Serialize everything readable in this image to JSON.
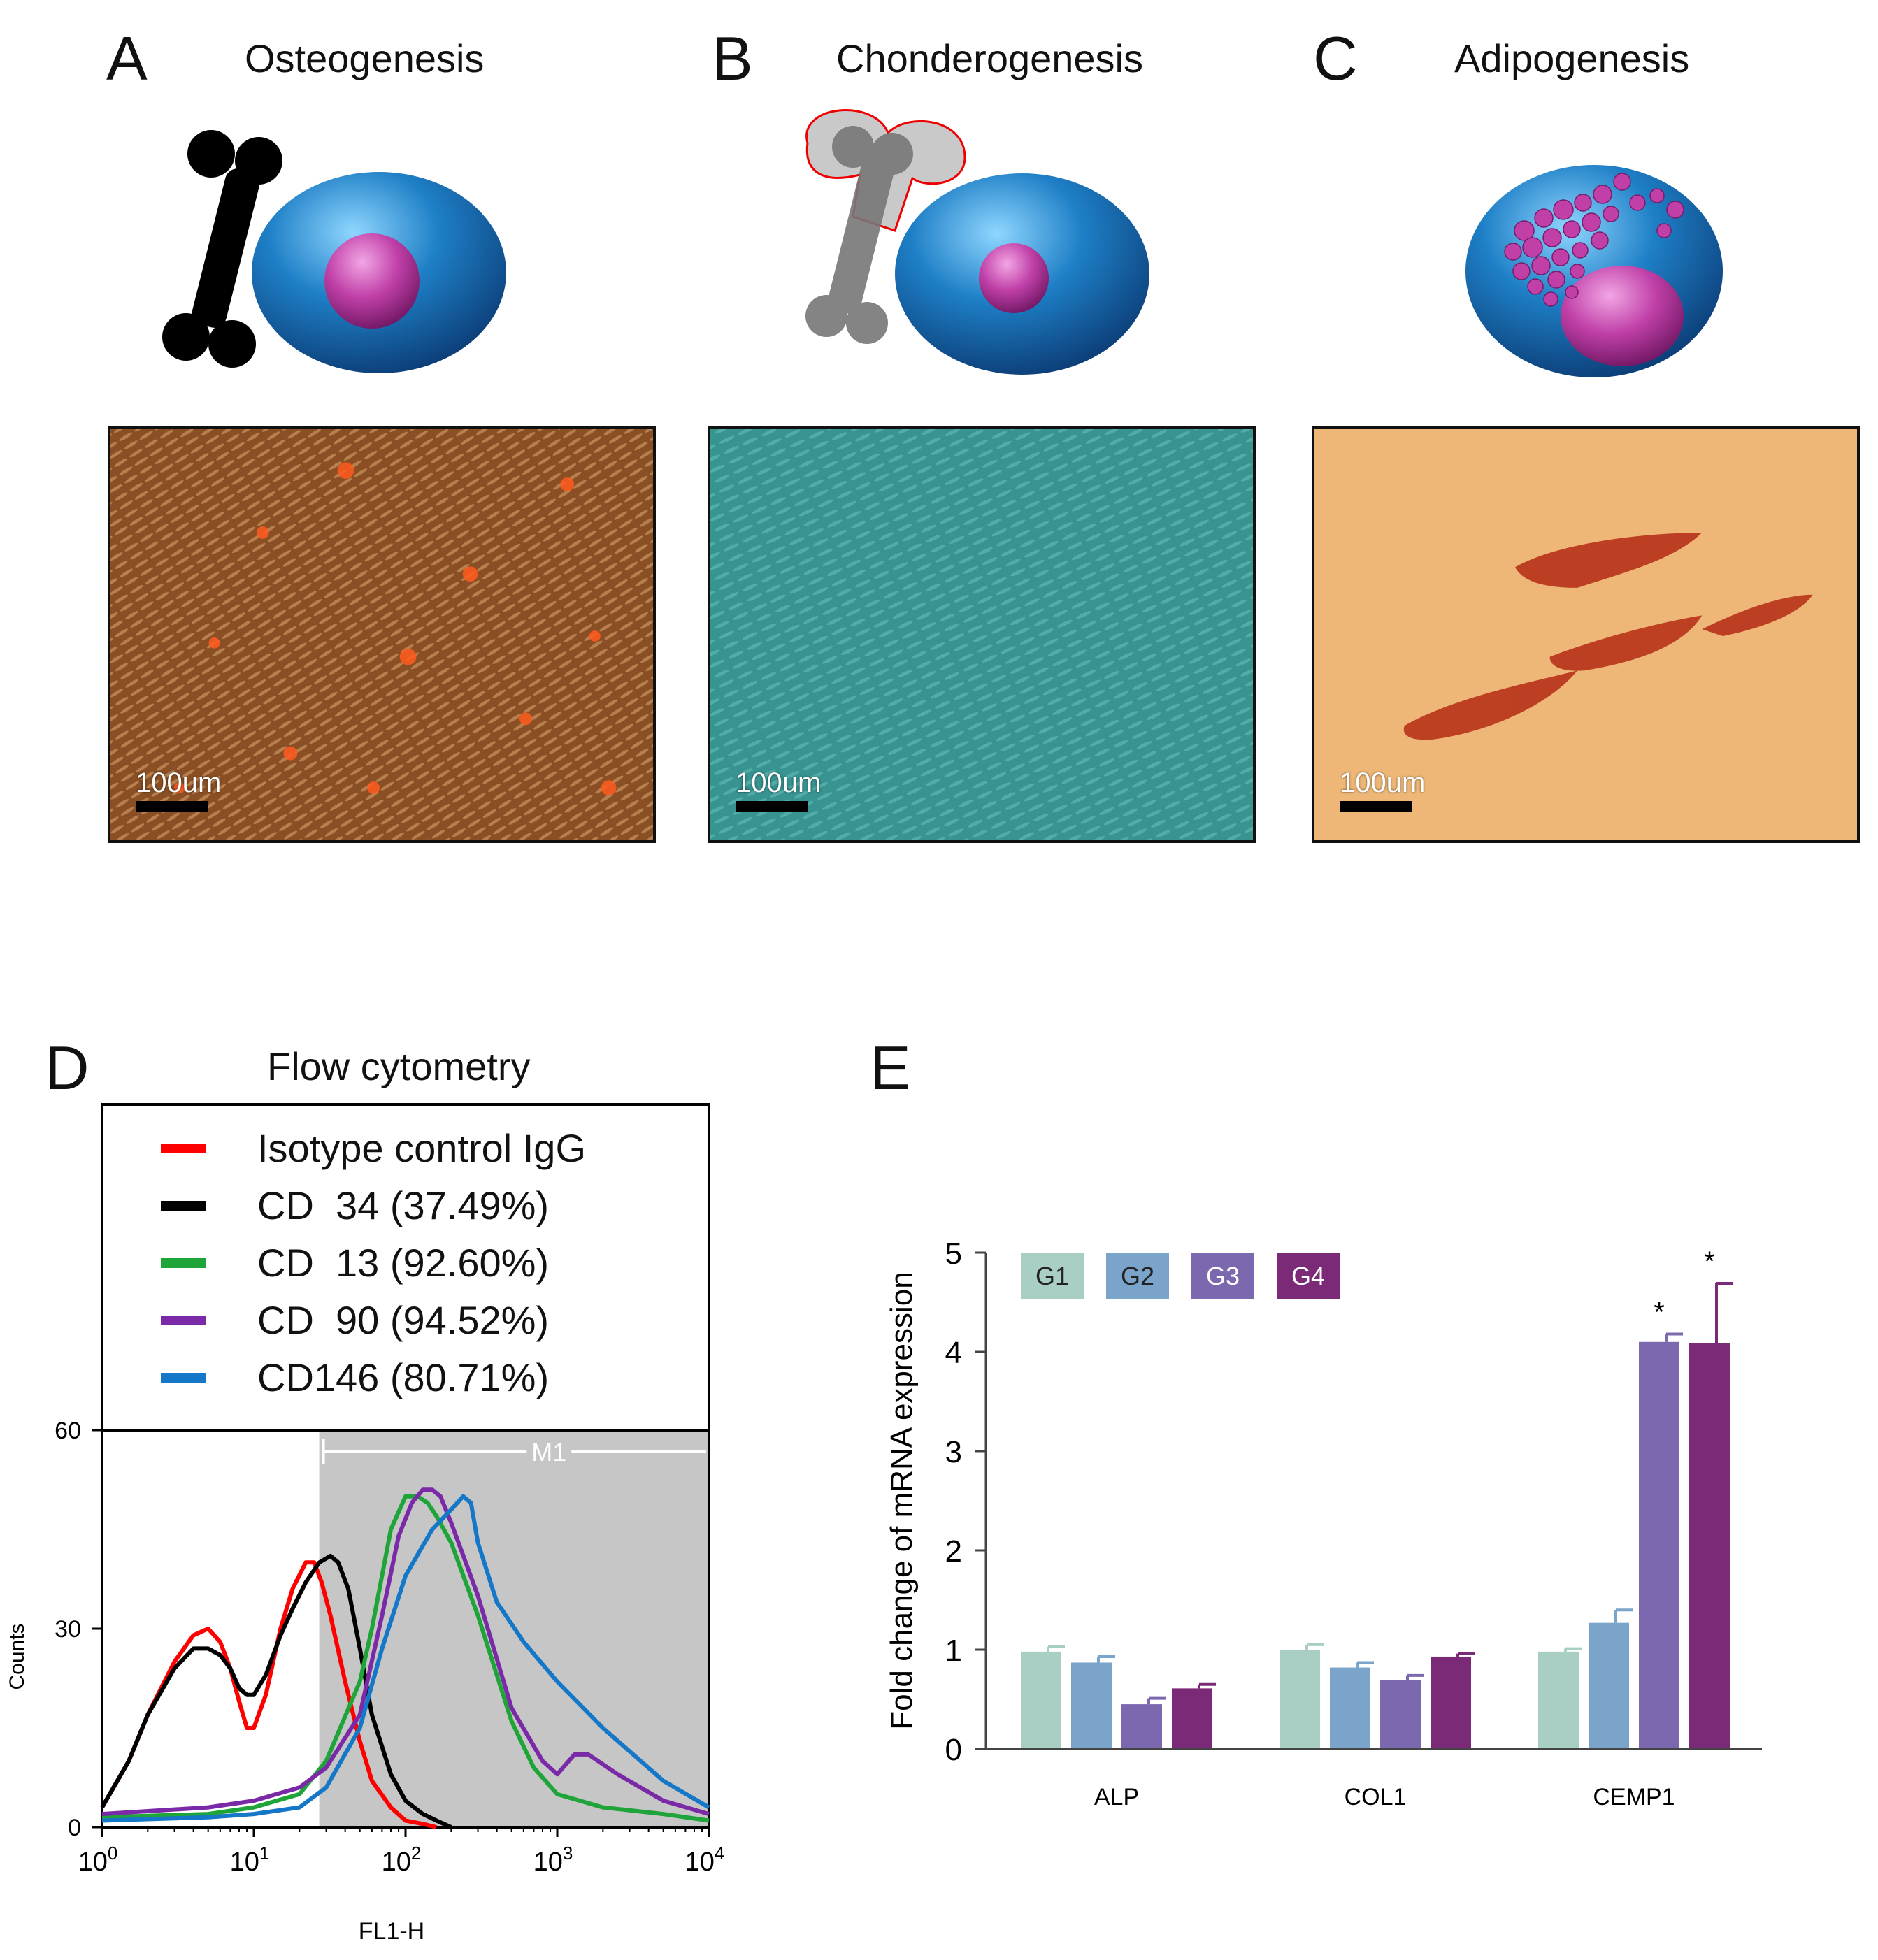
{
  "panels": {
    "a": {
      "letter": "A",
      "title": "Osteogenesis",
      "scale": "100um"
    },
    "b": {
      "letter": "B",
      "title": "Chonderogenesis",
      "scale": "100um"
    },
    "c": {
      "letter": "C",
      "title": "Adipogenesis",
      "scale": "100um"
    },
    "d": {
      "letter": "D",
      "title": "Flow cytometry"
    },
    "e": {
      "letter": "E"
    }
  },
  "colors": {
    "cell_body": "#1e7fc6",
    "nucleus": "#c040a8",
    "osteo_bg": "#9a5a2c",
    "chondro_bg": "#3e9a98",
    "adipo_bg": "#f2bd7c",
    "adipo_stain": "#b8331a"
  },
  "chart_data": [
    {
      "type": "line",
      "title": "Flow cytometry",
      "xlabel": "FL1-H",
      "ylabel": "Counts",
      "xscale": "log",
      "xlim": [
        1,
        10000
      ],
      "ylim": [
        0,
        60
      ],
      "xticks": [
        "10^0",
        "10^1",
        "10^2",
        "10^3",
        "10^4"
      ],
      "yticks": [
        0,
        30,
        60
      ],
      "gate": {
        "label": "M1",
        "from": 27,
        "to": 10000
      },
      "legend": [
        "Isotype control IgG",
        "CD  34 (37.49%)",
        "CD  13 (92.60%)",
        "CD  90 (94.52%)",
        "CD146 (80.71%)"
      ],
      "series": [
        {
          "name": "Isotype control IgG",
          "color": "#ff0000",
          "x": [
            1,
            1.5,
            2,
            3,
            4,
            5,
            6,
            7,
            8,
            9,
            10,
            12,
            15,
            18,
            22,
            25,
            28,
            32,
            40,
            50,
            60,
            80,
            100,
            130,
            160
          ],
          "y": [
            3,
            10,
            17,
            25,
            29,
            30,
            28,
            24,
            19,
            15,
            15,
            20,
            30,
            36,
            40,
            40,
            37,
            32,
            22,
            13,
            7,
            3,
            1,
            0.5,
            0
          ]
        },
        {
          "name": "CD  34 (37.49%)",
          "color": "#000000",
          "x": [
            1,
            1.5,
            2,
            3,
            4,
            5,
            6,
            7,
            8,
            9,
            10,
            12,
            15,
            18,
            22,
            27,
            32,
            36,
            42,
            50,
            60,
            80,
            100,
            130,
            160,
            200
          ],
          "y": [
            3,
            10,
            17,
            24,
            27,
            27,
            26,
            24,
            21,
            20,
            20,
            23,
            29,
            33,
            37,
            40,
            41,
            40,
            36,
            27,
            17,
            8,
            4,
            2,
            1,
            0
          ]
        },
        {
          "name": "CD  13 (92.60%)",
          "color": "#1fa43a",
          "x": [
            1,
            5,
            10,
            20,
            30,
            50,
            60,
            80,
            100,
            120,
            140,
            160,
            200,
            300,
            500,
            700,
            1000,
            2000,
            5000,
            10000
          ],
          "y": [
            1.5,
            2,
            3,
            5,
            10,
            22,
            30,
            45,
            50,
            50,
            49,
            47,
            43,
            32,
            16,
            9,
            5,
            3,
            2,
            1
          ]
        },
        {
          "name": "CD  90 (94.52%)",
          "color": "#7a2aa6",
          "x": [
            1,
            5,
            10,
            20,
            30,
            50,
            70,
            90,
            110,
            130,
            150,
            170,
            200,
            300,
            500,
            800,
            1000,
            1300,
            1600,
            2500,
            5000,
            10000
          ],
          "y": [
            2,
            3,
            4,
            6,
            9,
            17,
            32,
            44,
            49,
            51,
            51,
            50,
            46,
            35,
            18,
            10,
            8,
            11,
            11,
            8,
            4,
            2
          ]
        },
        {
          "name": "CD146 (80.71%)",
          "color": "#1577c7",
          "x": [
            1,
            5,
            10,
            20,
            30,
            50,
            70,
            100,
            150,
            200,
            240,
            270,
            300,
            400,
            600,
            1000,
            2000,
            5000,
            10000
          ],
          "y": [
            1,
            1.5,
            2,
            3,
            6,
            15,
            27,
            38,
            45,
            48,
            50,
            49,
            43,
            34,
            28,
            22,
            15,
            7,
            3
          ]
        }
      ]
    },
    {
      "type": "bar",
      "ylabel": "Fold change of mRNA expression",
      "ylim": [
        0,
        5
      ],
      "yticks": [
        0,
        1,
        2,
        3,
        4,
        5
      ],
      "categories": [
        "ALP",
        "COL1",
        "CEMP1"
      ],
      "series": [
        {
          "name": "G1",
          "color": "#a9cfc5",
          "values": [
            0.98,
            1.0,
            0.98
          ],
          "errors": [
            0.05,
            0.05,
            0.03
          ]
        },
        {
          "name": "G2",
          "color": "#7aa4c9",
          "values": [
            0.87,
            0.82,
            1.27
          ],
          "errors": [
            0.06,
            0.05,
            0.13
          ]
        },
        {
          "name": "G3",
          "color": "#7b68ae",
          "values": [
            0.45,
            0.69,
            4.1
          ],
          "errors": [
            0.06,
            0.05,
            0.08
          ]
        },
        {
          "name": "G4",
          "color": "#7b2a78",
          "values": [
            0.61,
            0.93,
            4.09
          ],
          "errors": [
            0.04,
            0.03,
            0.6
          ]
        }
      ],
      "significance": [
        {
          "category": "CEMP1",
          "series": "G3",
          "label": "*"
        },
        {
          "category": "CEMP1",
          "series": "G4",
          "label": "*"
        }
      ]
    }
  ]
}
